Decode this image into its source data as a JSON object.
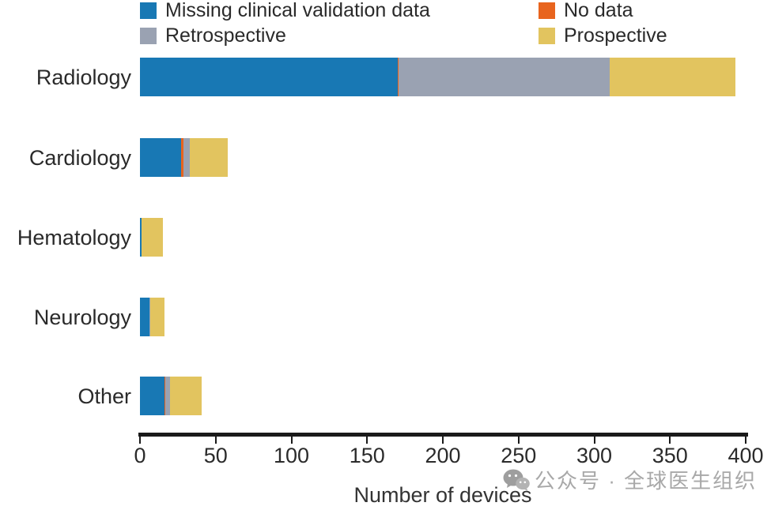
{
  "figure": {
    "background": "#ffffff",
    "watermark": {
      "icon": "wechat-icon",
      "text": "公众号 · 全球医生组织",
      "color": "#a8a8a8"
    }
  },
  "chart_data": {
    "type": "bar",
    "orientation": "horizontal",
    "stacked": true,
    "title": "",
    "xlabel": "Number of devices",
    "ylabel": "",
    "xlim": [
      0,
      400
    ],
    "x_ticks": [
      0,
      50,
      100,
      150,
      200,
      250,
      300,
      350,
      400
    ],
    "grid": false,
    "legend_position": "top-two-columns",
    "categories": [
      "Radiology",
      "Cardiology",
      "Hematology",
      "Neurology",
      "Other"
    ],
    "series": [
      {
        "name": "Missing clinical validation data",
        "color": "#1878b4",
        "values": [
          170,
          27,
          1,
          6,
          16
        ]
      },
      {
        "name": "No data",
        "color": "#e8641e",
        "values": [
          1,
          2,
          0,
          0,
          1
        ]
      },
      {
        "name": "Retrospective",
        "color": "#9aa2b2",
        "values": [
          139,
          4,
          0,
          1,
          3
        ]
      },
      {
        "name": "Prospective",
        "color": "#e2c45f",
        "values": [
          83,
          25,
          14,
          9,
          21
        ]
      }
    ],
    "legend_columns": [
      [
        "Missing clinical validation data",
        "Retrospective"
      ],
      [
        "No data",
        "Prospective"
      ]
    ],
    "category_totals": [
      393,
      58,
      15,
      16,
      41
    ],
    "axis_color": "#1a1a1a",
    "text_color": "#2a2a2a"
  }
}
